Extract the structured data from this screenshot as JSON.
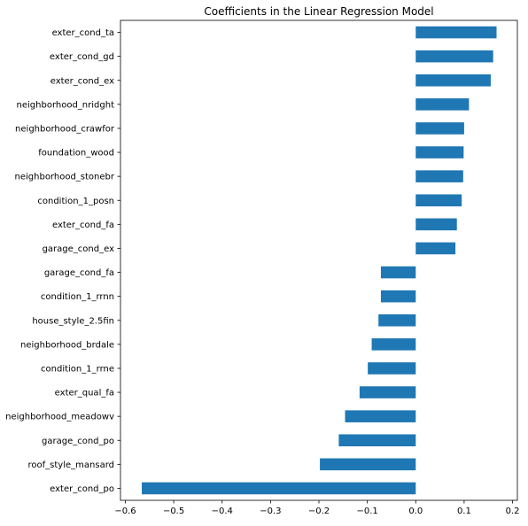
{
  "chart_data": {
    "type": "bar",
    "orientation": "horizontal",
    "title": "Coefficients in the Linear Regression Model",
    "xlabel": "",
    "ylabel": "",
    "xlim": [
      -0.61,
      0.21
    ],
    "xticks": [
      -0.6,
      -0.5,
      -0.4,
      -0.3,
      -0.2,
      -0.1,
      0.0,
      0.1,
      0.2
    ],
    "xtick_labels": [
      "−0.6",
      "−0.5",
      "−0.4",
      "−0.3",
      "−0.2",
      "−0.1",
      "0.0",
      "0.1",
      "0.2"
    ],
    "grid": false,
    "legend": "none",
    "bar_color": "#1f77b4",
    "categories": [
      "exter_cond_ta",
      "exter_cond_gd",
      "exter_cond_ex",
      "neighborhood_nridght",
      "neighborhood_crawfor",
      "foundation_wood",
      "neighborhood_stonebr",
      "condition_1_posn",
      "exter_cond_fa",
      "garage_cond_ex",
      "garage_cond_fa",
      "condition_1_rrnn",
      "house_style_2.5fin",
      "neighborhood_brdale",
      "condition_1_rrne",
      "exter_qual_fa",
      "neighborhood_meadowv",
      "garage_cond_po",
      "roof_style_mansard",
      "exter_cond_po"
    ],
    "values": [
      0.167,
      0.16,
      0.155,
      0.11,
      0.1,
      0.099,
      0.098,
      0.095,
      0.085,
      0.082,
      -0.072,
      -0.072,
      -0.077,
      -0.091,
      -0.099,
      -0.116,
      -0.146,
      -0.159,
      -0.198,
      -0.566
    ]
  }
}
